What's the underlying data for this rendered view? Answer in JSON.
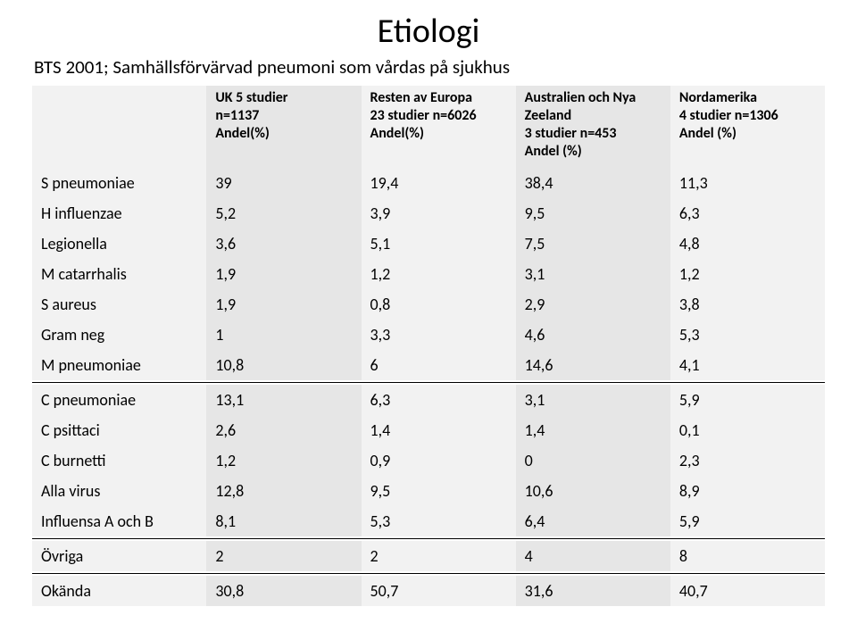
{
  "title": "Etiologi",
  "subtitle": "BTS 2001; Samhällsförvärvad pneumoni som vårdas på sjukhus",
  "table": {
    "header_bg_even": "#f2f2f2",
    "header_bg_odd": "#e6e6e6",
    "row_bg_even": "#f2f2f2",
    "row_bg_odd": "#e6e6e6",
    "text_color": "#000000",
    "border_color": "#000000",
    "columns": [
      "",
      "UK  5 studier\nn=1137\nAndel(%)",
      "Resten av Europa\n23 studier n=6026\nAndel(%)",
      "Australien och Nya\nZeeland\n3 studier n=453\nAndel (%)",
      "Nordamerika\n4 studier n=1306\nAndel (%)"
    ],
    "rows": [
      [
        "S pneumoniae",
        "39",
        "19,4",
        "38,4",
        "11,3"
      ],
      [
        "H influenzae",
        "5,2",
        "3,9",
        "9,5",
        "6,3"
      ],
      [
        "Legionella",
        "3,6",
        "5,1",
        "7,5",
        "4,8"
      ],
      [
        "M catarrhalis",
        "1,9",
        "1,2",
        "3,1",
        "1,2"
      ],
      [
        "S aureus",
        "1,9",
        "0,8",
        "2,9",
        "3,8"
      ],
      [
        "Gram neg",
        "1",
        "3,3",
        "4,6",
        "5,3"
      ],
      [
        "M pneumoniae",
        "10,8",
        "6",
        "14,6",
        "4,1"
      ],
      [
        "C pneumoniae",
        "13,1",
        "6,3",
        "3,1",
        "5,9"
      ],
      [
        "C psittaci",
        "2,6",
        "1,4",
        "1,4",
        "0,1"
      ],
      [
        "C burnetti",
        "1,2",
        "0,9",
        "0",
        "2,3"
      ],
      [
        "Alla virus",
        "12,8",
        "9,5",
        "10,6",
        "8,9"
      ],
      [
        "Influensa A och B",
        "8,1",
        "5,3",
        "6,4",
        "5,9"
      ],
      [
        "Övriga",
        "2",
        "2",
        "4",
        "8"
      ],
      [
        "Okända",
        "30,8",
        "50,7",
        "31,6",
        "40,7"
      ]
    ],
    "divider_after_rows": [
      6,
      11,
      12
    ]
  }
}
